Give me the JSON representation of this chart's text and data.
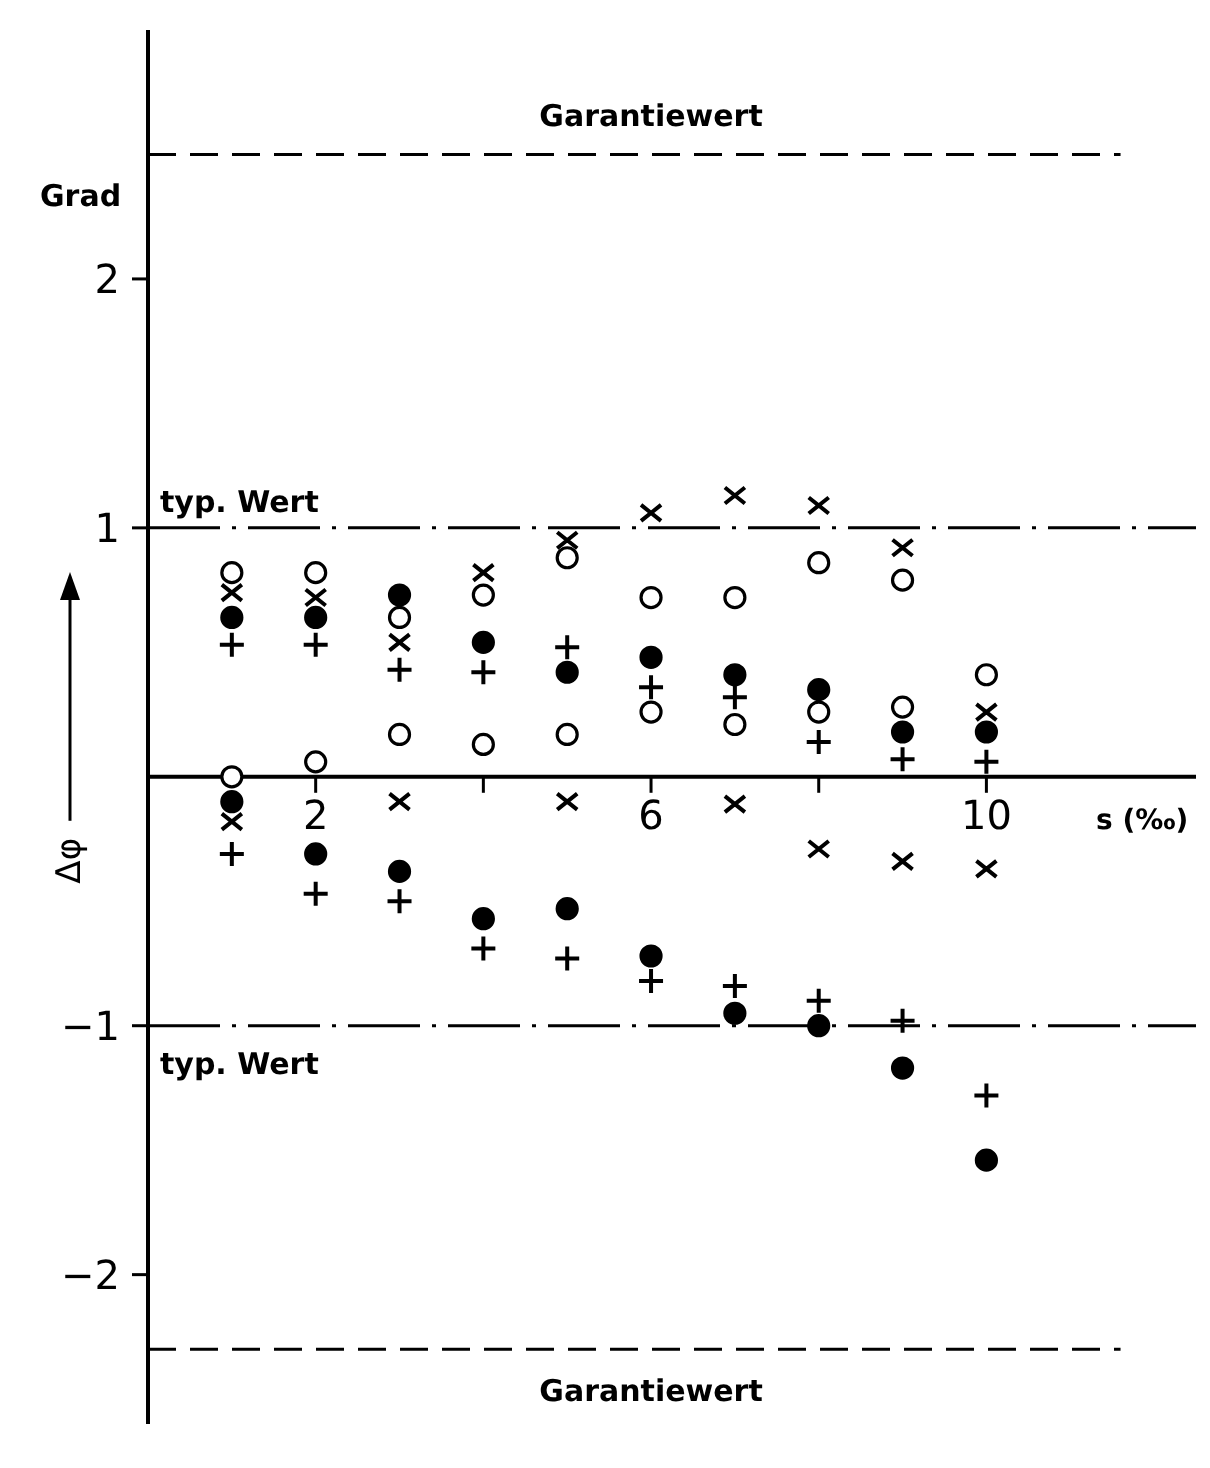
{
  "chart_data": {
    "type": "scatter",
    "xlabel": "s (‰)",
    "ylabel": "Δφ",
    "annotations": [
      "Grad"
    ],
    "xlim": [
      0,
      12.5
    ],
    "ylim": [
      -2.6,
      3.0
    ],
    "xticks": [
      {
        "value": 2,
        "label": "2"
      },
      {
        "value": 4,
        "label": null
      },
      {
        "value": 6,
        "label": "6"
      },
      {
        "value": 8,
        "label": null
      },
      {
        "value": 10,
        "label": "10"
      }
    ],
    "yticks": [
      -2,
      -1,
      1,
      2
    ],
    "grid": false,
    "ref_lines": [
      {
        "axis": "y",
        "value": 2.5,
        "label": "Garantiewert",
        "line_style": "dashed",
        "color": "#000000"
      },
      {
        "axis": "y",
        "value": 1,
        "label": "typ. Wert",
        "line_style": "dashdot",
        "color": "#000000"
      },
      {
        "axis": "y",
        "value": -1,
        "label": "typ. Wert",
        "line_style": "dashdot",
        "color": "#000000"
      },
      {
        "axis": "y",
        "value": -2.3,
        "label": "Garantiewert",
        "line_style": "dashed",
        "color": "#000000"
      }
    ],
    "series": [
      {
        "color": "#ffffff",
        "marker": "circle",
        "x": [
          1,
          1,
          2,
          2,
          3,
          3,
          4,
          4,
          5,
          5,
          6,
          6,
          7,
          7,
          8,
          8,
          9,
          9,
          10
        ],
        "values": [
          0.82,
          0,
          0.82,
          0.06,
          0.64,
          0.17,
          0.73,
          0.13,
          0.88,
          0.17,
          0.72,
          0.26,
          0.72,
          0.21,
          0.86,
          0.26,
          0.79,
          0.28,
          0.41
        ]
      },
      {
        "color": "#000000",
        "marker": "circle",
        "x": [
          1,
          2,
          3,
          4,
          5,
          6,
          7,
          8,
          9,
          10,
          1,
          2,
          3,
          4,
          5,
          6,
          7,
          8,
          9,
          10
        ],
        "values": [
          0.64,
          0.64,
          0.73,
          0.54,
          0.42,
          0.48,
          0.41,
          0.35,
          0.18,
          0.18,
          -0.1,
          -0.31,
          -0.38,
          -0.57,
          -0.53,
          -0.72,
          -0.95,
          -1.0,
          -1.17,
          -1.54
        ]
      },
      {
        "color": "#000000",
        "marker": "plus",
        "x": [
          1,
          2,
          3,
          4,
          5,
          6,
          7,
          8,
          9,
          10,
          1,
          2,
          3,
          4,
          5,
          6,
          7,
          8,
          9,
          10
        ],
        "values": [
          0.53,
          0.53,
          0.43,
          0.42,
          0.52,
          0.36,
          0.32,
          0.14,
          0.07,
          0.06,
          -0.31,
          -0.47,
          -0.5,
          -0.69,
          -0.73,
          -0.82,
          -0.84,
          -0.9,
          -0.98,
          -1.28
        ]
      },
      {
        "color": "#000000",
        "marker": "cross",
        "x": [
          1,
          2,
          3,
          4,
          5,
          6,
          7,
          8,
          9,
          10,
          1,
          3,
          5,
          7,
          8,
          9,
          10
        ],
        "values": [
          0.74,
          0.72,
          0.54,
          0.82,
          0.95,
          1.06,
          1.13,
          1.09,
          0.92,
          0.26,
          -0.18,
          -0.1,
          -0.1,
          -0.11,
          -0.29,
          -0.34,
          -0.37
        ]
      }
    ]
  }
}
